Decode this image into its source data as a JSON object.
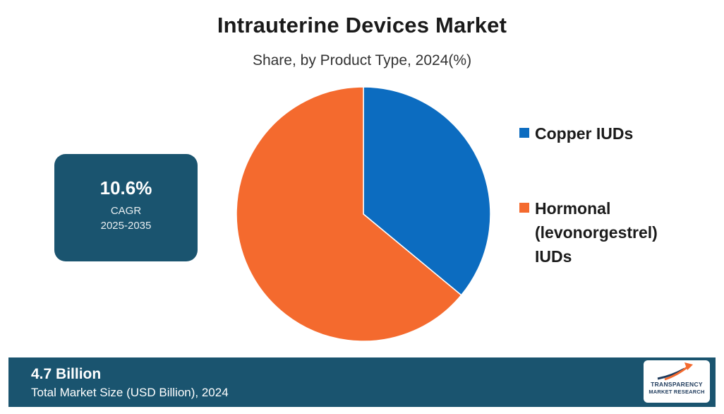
{
  "chart_data": {
    "type": "pie",
    "title": "Intrauterine Devices Market",
    "subtitle": "Share, by Product Type, 2024(%)",
    "categories": [
      "Copper IUDs",
      "Hormonal (levonorgestrel) IUDs"
    ],
    "values": [
      36,
      64
    ],
    "colors": [
      "#0c6cc0",
      "#f46a2e"
    ],
    "start_angle_deg": 0,
    "direction": "clockwise",
    "legend_position": "right"
  },
  "cagr": {
    "value": "10.6%",
    "label": "CAGR",
    "period": "2025-2035",
    "color": "#1a546f"
  },
  "footer": {
    "value": "4.7 Billion",
    "label": "Total Market Size (USD Billion), 2024",
    "color": "#1a546f"
  },
  "logo": {
    "line1": "TRANSPARENCY",
    "line2": "MARKET RESEARCH",
    "icon": "rising-arrow-logo-icon",
    "accent": "#f46a2e"
  }
}
